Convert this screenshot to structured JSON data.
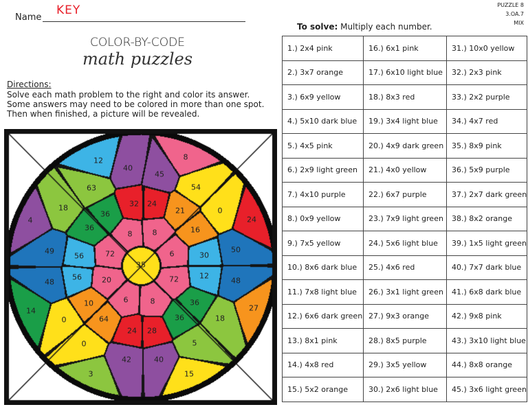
{
  "header": {
    "name_label": "Name",
    "name_value": "KEY",
    "puzzle_lines": [
      "PUZZLE 8",
      "3.OA.7",
      "MIX"
    ]
  },
  "title": {
    "line1": "COLOR-BY-CODE",
    "line2": "math puzzles"
  },
  "directions": {
    "heading": "Directions:",
    "lines": [
      "Solve each math problem to the right and color its answer.",
      "Some answers may need to be colored in more than one spot.",
      "Then when finished, a picture will be revealed."
    ]
  },
  "instructions": {
    "bold": "To solve:",
    "text": " Multiply each number."
  },
  "problems": [
    [
      "1.) 2x4 pink",
      "16.) 6x1 pink",
      "31.) 10x0 yellow"
    ],
    [
      "2.) 3x7 orange",
      "17.) 6x10 light blue",
      "32.) 2x3 pink"
    ],
    [
      "3.) 6x9 yellow",
      "18.) 8x3 red",
      "33.) 2x2 purple"
    ],
    [
      "4.) 5x10 dark blue",
      "19.) 3x4 light blue",
      "34.) 4x7 red"
    ],
    [
      "5.) 4x5 pink",
      "20.) 4x9 dark green",
      "35.) 8x9 pink"
    ],
    [
      "6.) 2x9 light green",
      "21.) 4x0 yellow",
      "36.) 5x9 purple"
    ],
    [
      "7.) 4x10 purple",
      "22.) 6x7 purple",
      "37.) 2x7 dark green"
    ],
    [
      "8.) 0x9 yellow",
      "23.) 7x9 light green",
      "38.) 8x2 orange"
    ],
    [
      "9.) 7x5 yellow",
      "24.) 5x6 light blue",
      "39.) 1x5 light green"
    ],
    [
      "10.) 8x6 dark blue",
      "25.) 4x6 red",
      "40.) 7x7 dark blue"
    ],
    [
      "11.) 7x8 light blue",
      "26.) 3x1 light green",
      "41.) 6x8 dark blue"
    ],
    [
      "12.) 6x6 dark green",
      "27.) 9x3 orange",
      "42.) 9x8 pink"
    ],
    [
      "13.) 8x1 pink",
      "28.) 8x5 purple",
      "43.) 3x10 light blue"
    ],
    [
      "14.) 4x8 red",
      "29.) 3x5 yellow",
      "44.) 8x8 orange"
    ],
    [
      "15.) 5x2 orange",
      "30.) 2x6 light blue",
      "45.) 3x6 light green"
    ]
  ],
  "palette": {
    "pink": "#f0648c",
    "red": "#e8202a",
    "orange": "#f7941d",
    "yellow": "#ffe01a",
    "light green": "#8cc63f",
    "dark green": "#1a9e48",
    "light blue": "#3db4e6",
    "dark blue": "#1f75bb",
    "purple": "#8e4fa0"
  },
  "picture_regions": [
    {
      "n": "12",
      "c": "light blue"
    },
    {
      "n": "40",
      "c": "purple"
    },
    {
      "n": "8",
      "c": "pink"
    },
    {
      "n": "45",
      "c": "purple"
    },
    {
      "n": "54",
      "c": "yellow"
    },
    {
      "n": "0",
      "c": "yellow"
    },
    {
      "n": "24",
      "c": "red"
    },
    {
      "n": "4",
      "c": "purple"
    },
    {
      "n": "63",
      "c": "light green"
    },
    {
      "n": "18",
      "c": "light green"
    },
    {
      "n": "36",
      "c": "dark green"
    },
    {
      "n": "36",
      "c": "dark green"
    },
    {
      "n": "32",
      "c": "red"
    },
    {
      "n": "24",
      "c": "red"
    },
    {
      "n": "21",
      "c": "orange"
    },
    {
      "n": "16",
      "c": "orange"
    },
    {
      "n": "8",
      "c": "pink"
    },
    {
      "n": "8",
      "c": "pink"
    },
    {
      "n": "49",
      "c": "dark blue"
    },
    {
      "n": "56",
      "c": "light blue"
    },
    {
      "n": "72",
      "c": "pink"
    },
    {
      "n": "6",
      "c": "pink"
    },
    {
      "n": "30",
      "c": "light blue"
    },
    {
      "n": "50",
      "c": "dark blue"
    },
    {
      "n": "48",
      "c": "dark blue"
    },
    {
      "n": "56",
      "c": "light blue"
    },
    {
      "n": "20",
      "c": "pink"
    },
    {
      "n": "72",
      "c": "pink"
    },
    {
      "n": "12",
      "c": "light blue"
    },
    {
      "n": "48",
      "c": "dark blue"
    },
    {
      "n": "14",
      "c": "dark green"
    },
    {
      "n": "10",
      "c": "orange"
    },
    {
      "n": "6",
      "c": "pink"
    },
    {
      "n": "8",
      "c": "pink"
    },
    {
      "n": "36",
      "c": "dark green"
    },
    {
      "n": "0",
      "c": "yellow"
    },
    {
      "n": "64",
      "c": "orange"
    },
    {
      "n": "36",
      "c": "dark green"
    },
    {
      "n": "18",
      "c": "light green"
    },
    {
      "n": "27",
      "c": "orange"
    },
    {
      "n": "24",
      "c": "red"
    },
    {
      "n": "28",
      "c": "red"
    },
    {
      "n": "0",
      "c": "yellow"
    },
    {
      "n": "5",
      "c": "light green"
    },
    {
      "n": "42",
      "c": "purple"
    },
    {
      "n": "40",
      "c": "purple"
    },
    {
      "n": "3",
      "c": "light green"
    },
    {
      "n": "15",
      "c": "yellow"
    },
    {
      "n": "35",
      "c": "yellow"
    }
  ]
}
